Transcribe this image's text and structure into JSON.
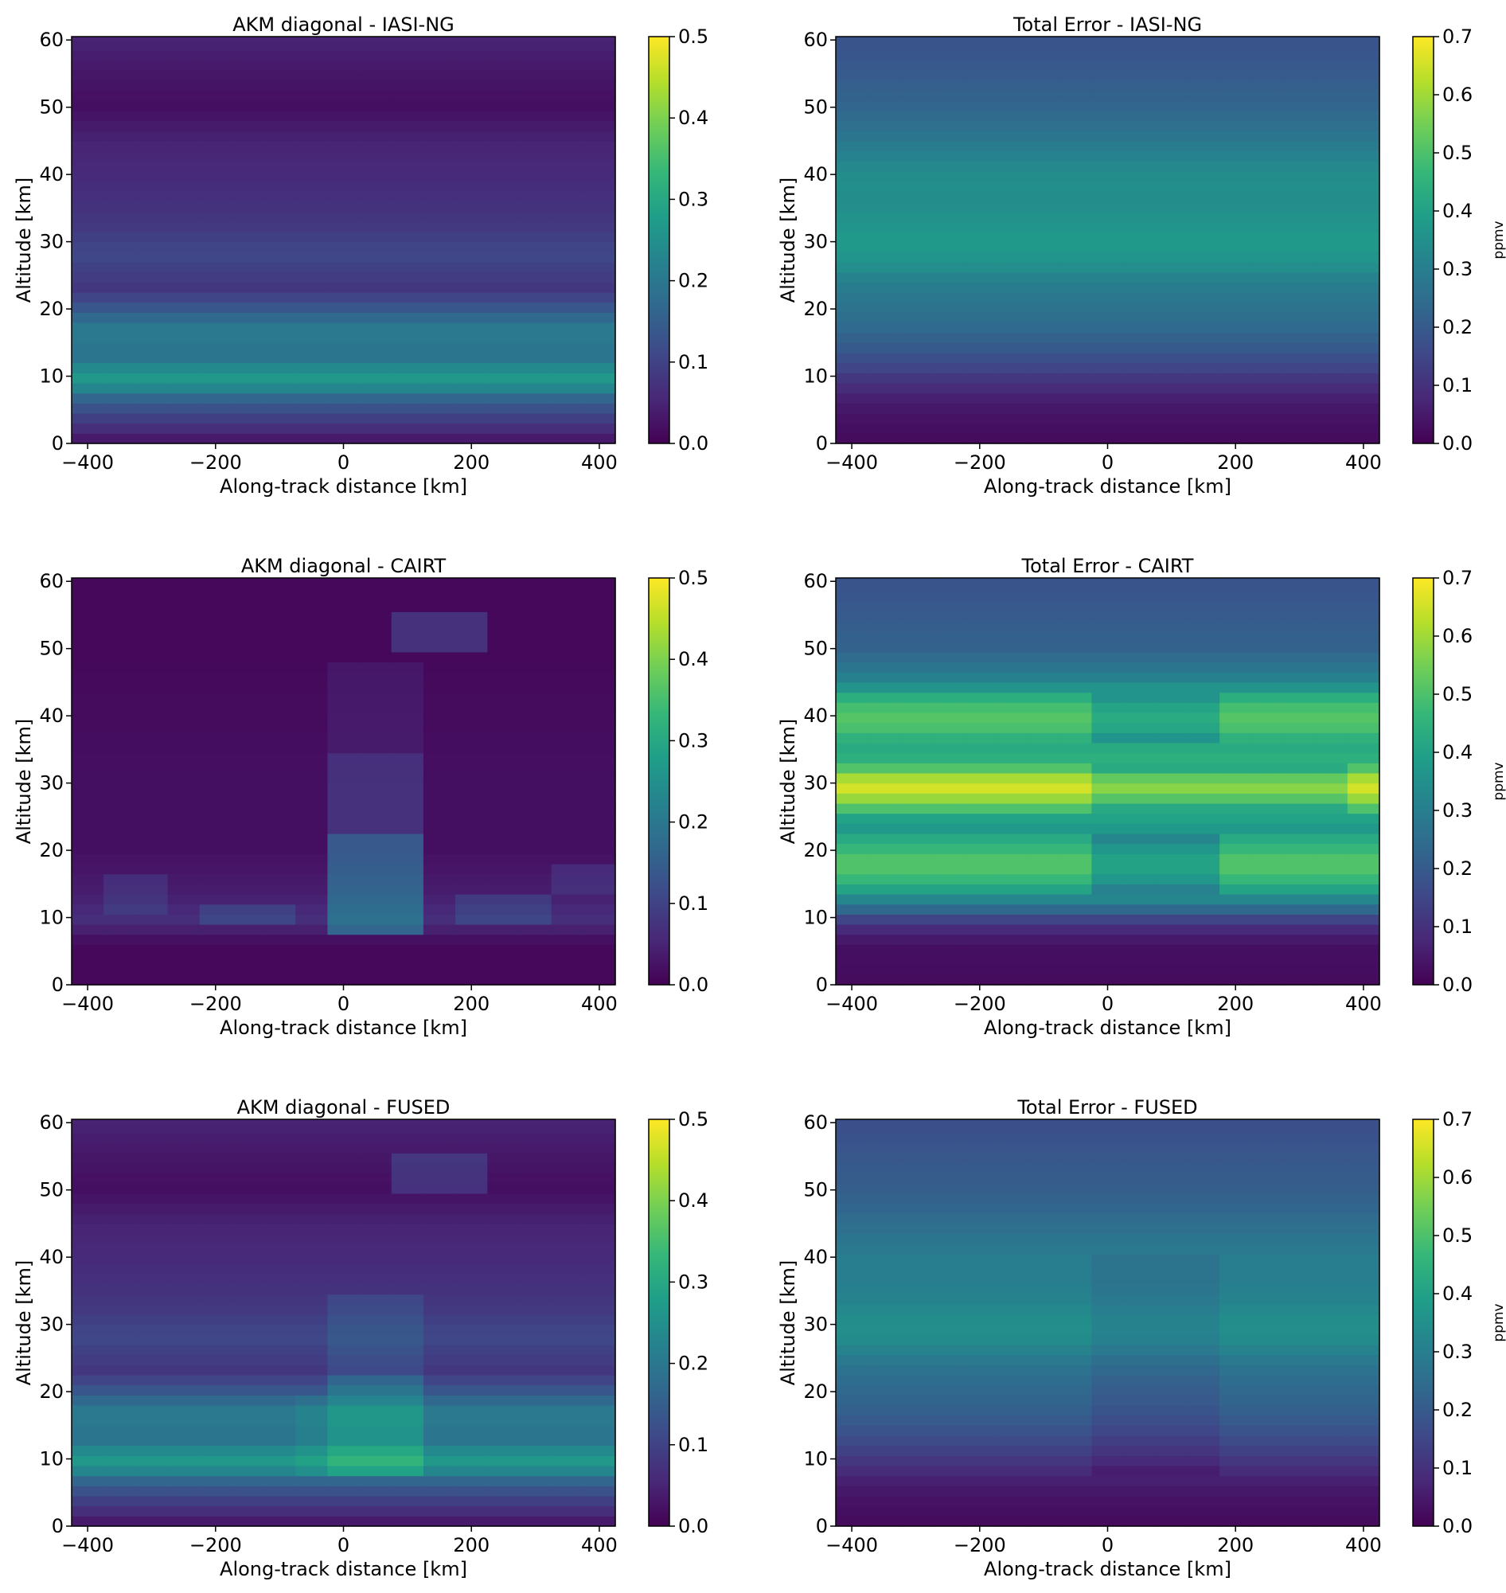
{
  "figure": {
    "colormap": "viridis",
    "colormap_stops": [
      "#440154",
      "#482878",
      "#3e4989",
      "#31688e",
      "#26828e",
      "#1f9e89",
      "#35b779",
      "#6ece58",
      "#b5de2b",
      "#fde725"
    ],
    "frame_color": "#000000"
  },
  "chart_data": [
    {
      "type": "heatmap",
      "title": "AKM diagonal - IASI-NG",
      "xlabel": "Along-track distance [km]",
      "ylabel": "Altitude [km]",
      "colorbar_label": "",
      "x_ticks": [
        "−400",
        "−200",
        "0",
        "200",
        "400"
      ],
      "y_ticks": [
        "0",
        "10",
        "20",
        "30",
        "40",
        "50",
        "60"
      ],
      "colorbar_ticks": [
        "0.0",
        "0.1",
        "0.2",
        "0.3",
        "0.4",
        "0.5"
      ],
      "xlim": [
        -425,
        425
      ],
      "ylim": [
        0,
        60.5
      ],
      "clim": [
        0,
        0.5
      ],
      "x": [
        -400,
        -350,
        -300,
        -250,
        -200,
        -150,
        -100,
        -50,
        0,
        50,
        100,
        150,
        200,
        250,
        300,
        350,
        400
      ],
      "altitude_profile": [
        [
          0,
          0.02
        ],
        [
          1.5,
          0.05
        ],
        [
          3,
          0.08
        ],
        [
          5,
          0.12
        ],
        [
          7,
          0.17
        ],
        [
          8.5,
          0.24
        ],
        [
          10,
          0.27
        ],
        [
          11.5,
          0.23
        ],
        [
          13,
          0.19
        ],
        [
          15,
          0.2
        ],
        [
          17,
          0.21
        ],
        [
          19,
          0.16
        ],
        [
          21,
          0.12
        ],
        [
          23,
          0.08
        ],
        [
          25,
          0.09
        ],
        [
          28,
          0.11
        ],
        [
          30,
          0.1
        ],
        [
          33,
          0.08
        ],
        [
          36,
          0.07
        ],
        [
          40,
          0.06
        ],
        [
          45,
          0.05
        ],
        [
          50,
          0.02
        ],
        [
          55,
          0.03
        ],
        [
          60,
          0.05
        ]
      ],
      "modifiers": []
    },
    {
      "type": "heatmap",
      "title": "Total Error - IASI-NG",
      "xlabel": "Along-track distance [km]",
      "ylabel": "Altitude [km]",
      "colorbar_label": "ppmv",
      "x_ticks": [
        "−400",
        "−200",
        "0",
        "200",
        "400"
      ],
      "y_ticks": [
        "0",
        "10",
        "20",
        "30",
        "40",
        "50",
        "60"
      ],
      "colorbar_ticks": [
        "0.0",
        "0.1",
        "0.2",
        "0.3",
        "0.4",
        "0.5",
        "0.6",
        "0.7"
      ],
      "xlim": [
        -425,
        425
      ],
      "ylim": [
        0,
        60.5
      ],
      "clim": [
        0,
        0.7
      ],
      "x": [
        -400,
        -350,
        -300,
        -250,
        -200,
        -150,
        -100,
        -50,
        0,
        50,
        100,
        150,
        200,
        250,
        300,
        350,
        400
      ],
      "altitude_profile": [
        [
          0,
          0.02
        ],
        [
          3,
          0.03
        ],
        [
          6,
          0.05
        ],
        [
          9,
          0.1
        ],
        [
          12,
          0.16
        ],
        [
          15,
          0.21
        ],
        [
          18,
          0.25
        ],
        [
          21,
          0.27
        ],
        [
          24,
          0.3
        ],
        [
          27,
          0.36
        ],
        [
          30,
          0.38
        ],
        [
          33,
          0.36
        ],
        [
          36,
          0.34
        ],
        [
          39,
          0.35
        ],
        [
          42,
          0.32
        ],
        [
          45,
          0.28
        ],
        [
          50,
          0.23
        ],
        [
          55,
          0.2
        ],
        [
          60,
          0.18
        ]
      ],
      "modifiers": []
    },
    {
      "type": "heatmap",
      "title": "AKM diagonal - CAIRT",
      "xlabel": "Along-track distance [km]",
      "ylabel": "Altitude [km]",
      "colorbar_label": "",
      "x_ticks": [
        "−400",
        "−200",
        "0",
        "200",
        "400"
      ],
      "y_ticks": [
        "0",
        "10",
        "20",
        "30",
        "40",
        "50",
        "60"
      ],
      "colorbar_ticks": [
        "0.0",
        "0.1",
        "0.2",
        "0.3",
        "0.4",
        "0.5"
      ],
      "xlim": [
        -425,
        425
      ],
      "ylim": [
        0,
        60.5
      ],
      "clim": [
        0,
        0.5
      ],
      "x": [
        -400,
        -350,
        -300,
        -250,
        -200,
        -150,
        -100,
        -50,
        0,
        50,
        100,
        150,
        200,
        250,
        300,
        350,
        400
      ],
      "altitude_profile": [
        [
          0,
          0.01
        ],
        [
          6,
          0.01
        ],
        [
          8,
          0.04
        ],
        [
          10,
          0.07
        ],
        [
          12,
          0.05
        ],
        [
          14,
          0.04
        ],
        [
          17,
          0.03
        ],
        [
          20,
          0.02
        ],
        [
          30,
          0.02
        ],
        [
          40,
          0.015
        ],
        [
          50,
          0.01
        ],
        [
          60,
          0.01
        ]
      ],
      "modifiers": [
        {
          "x_range": [
            -25,
            125
          ],
          "alt_range": [
            8,
            22
          ],
          "add": 0.12
        },
        {
          "x_range": [
            -25,
            125
          ],
          "alt_range": [
            22,
            35
          ],
          "add": 0.05
        },
        {
          "x_range": [
            -25,
            125
          ],
          "alt_range": [
            35,
            48
          ],
          "add": 0.02
        },
        {
          "x_range": [
            75,
            225
          ],
          "alt_range": [
            49,
            56
          ],
          "add": 0.06
        },
        {
          "x_range": [
            -225,
            -75
          ],
          "alt_range": [
            9,
            12
          ],
          "add": 0.04
        },
        {
          "x_range": [
            175,
            325
          ],
          "alt_range": [
            9,
            14
          ],
          "add": 0.04
        },
        {
          "x_range": [
            -375,
            -275
          ],
          "alt_range": [
            11,
            17
          ],
          "add": 0.03
        },
        {
          "x_range": [
            325,
            425
          ],
          "alt_range": [
            14,
            18
          ],
          "add": 0.03
        }
      ]
    },
    {
      "type": "heatmap",
      "title": "Total Error - CAIRT",
      "xlabel": "Along-track distance [km]",
      "ylabel": "Altitude [km]",
      "colorbar_label": "ppmv",
      "x_ticks": [
        "−400",
        "−200",
        "0",
        "200",
        "400"
      ],
      "y_ticks": [
        "0",
        "10",
        "20",
        "30",
        "40",
        "50",
        "60"
      ],
      "colorbar_ticks": [
        "0.0",
        "0.1",
        "0.2",
        "0.3",
        "0.4",
        "0.5",
        "0.6",
        "0.7"
      ],
      "xlim": [
        -425,
        425
      ],
      "ylim": [
        0,
        60.5
      ],
      "clim": [
        0,
        0.7
      ],
      "x": [
        -400,
        -350,
        -300,
        -250,
        -200,
        -150,
        -100,
        -50,
        0,
        50,
        100,
        150,
        200,
        250,
        300,
        350,
        400
      ],
      "altitude_profile": [
        [
          0,
          0.02
        ],
        [
          6,
          0.03
        ],
        [
          9,
          0.1
        ],
        [
          12,
          0.28
        ],
        [
          15,
          0.45
        ],
        [
          18,
          0.52
        ],
        [
          21,
          0.45
        ],
        [
          24,
          0.35
        ],
        [
          27,
          0.55
        ],
        [
          29,
          0.66
        ],
        [
          31,
          0.6
        ],
        [
          33,
          0.45
        ],
        [
          36,
          0.42
        ],
        [
          39,
          0.52
        ],
        [
          42,
          0.48
        ],
        [
          45,
          0.32
        ],
        [
          50,
          0.22
        ],
        [
          55,
          0.2
        ],
        [
          60,
          0.18
        ]
      ],
      "modifiers": [
        {
          "x_range": [
            -25,
            375
          ],
          "alt_range": [
            25,
            33
          ],
          "add": -0.08
        },
        {
          "x_range": [
            -25,
            175
          ],
          "alt_range": [
            14,
            23
          ],
          "add": -0.1
        },
        {
          "x_range": [
            -25,
            175
          ],
          "alt_range": [
            36,
            43
          ],
          "add": -0.08
        }
      ]
    },
    {
      "type": "heatmap",
      "title": "AKM diagonal - FUSED",
      "xlabel": "Along-track distance [km]",
      "ylabel": "Altitude [km]",
      "colorbar_label": "",
      "x_ticks": [
        "−400",
        "−200",
        "0",
        "200",
        "400"
      ],
      "y_ticks": [
        "0",
        "10",
        "20",
        "30",
        "40",
        "50",
        "60"
      ],
      "colorbar_ticks": [
        "0.0",
        "0.1",
        "0.2",
        "0.3",
        "0.4",
        "0.5"
      ],
      "xlim": [
        -425,
        425
      ],
      "ylim": [
        0,
        60.5
      ],
      "clim": [
        0,
        0.5
      ],
      "x": [
        -400,
        -350,
        -300,
        -250,
        -200,
        -150,
        -100,
        -50,
        0,
        50,
        100,
        150,
        200,
        250,
        300,
        350,
        400
      ],
      "altitude_profile": [
        [
          0,
          0.02
        ],
        [
          1.5,
          0.05
        ],
        [
          3,
          0.08
        ],
        [
          5,
          0.12
        ],
        [
          7,
          0.17
        ],
        [
          8.5,
          0.24
        ],
        [
          10,
          0.27
        ],
        [
          11.5,
          0.23
        ],
        [
          13,
          0.19
        ],
        [
          15,
          0.2
        ],
        [
          17,
          0.21
        ],
        [
          19,
          0.16
        ],
        [
          21,
          0.12
        ],
        [
          23,
          0.08
        ],
        [
          25,
          0.09
        ],
        [
          28,
          0.11
        ],
        [
          30,
          0.1
        ],
        [
          33,
          0.08
        ],
        [
          36,
          0.07
        ],
        [
          40,
          0.06
        ],
        [
          45,
          0.05
        ],
        [
          50,
          0.02
        ],
        [
          55,
          0.03
        ],
        [
          60,
          0.05
        ]
      ],
      "modifiers": [
        {
          "x_range": [
            -25,
            125
          ],
          "alt_range": [
            8,
            22
          ],
          "add": 0.06
        },
        {
          "x_range": [
            -25,
            125
          ],
          "alt_range": [
            22,
            35
          ],
          "add": 0.03
        },
        {
          "x_range": [
            75,
            225
          ],
          "alt_range": [
            49,
            56
          ],
          "add": 0.05
        },
        {
          "x_range": [
            -75,
            -25
          ],
          "alt_range": [
            8,
            20
          ],
          "add": 0.02
        }
      ]
    },
    {
      "type": "heatmap",
      "title": "Total Error - FUSED",
      "xlabel": "Along-track distance [km]",
      "ylabel": "Altitude [km]",
      "colorbar_label": "ppmv",
      "x_ticks": [
        "−400",
        "−200",
        "0",
        "200",
        "400"
      ],
      "y_ticks": [
        "0",
        "10",
        "20",
        "30",
        "40",
        "50",
        "60"
      ],
      "colorbar_ticks": [
        "0.0",
        "0.1",
        "0.2",
        "0.3",
        "0.4",
        "0.5",
        "0.6",
        "0.7"
      ],
      "xlim": [
        -425,
        425
      ],
      "ylim": [
        0,
        60.5
      ],
      "clim": [
        0,
        0.7
      ],
      "x": [
        -400,
        -350,
        -300,
        -250,
        -200,
        -150,
        -100,
        -50,
        0,
        50,
        100,
        150,
        200,
        250,
        300,
        350,
        400
      ],
      "altitude_profile": [
        [
          0,
          0.02
        ],
        [
          3,
          0.03
        ],
        [
          6,
          0.05
        ],
        [
          9,
          0.1
        ],
        [
          12,
          0.15
        ],
        [
          15,
          0.19
        ],
        [
          18,
          0.22
        ],
        [
          21,
          0.24
        ],
        [
          24,
          0.27
        ],
        [
          27,
          0.33
        ],
        [
          30,
          0.35
        ],
        [
          33,
          0.32
        ],
        [
          36,
          0.3
        ],
        [
          39,
          0.3
        ],
        [
          42,
          0.28
        ],
        [
          45,
          0.25
        ],
        [
          50,
          0.21
        ],
        [
          55,
          0.19
        ],
        [
          60,
          0.17
        ]
      ],
      "modifiers": [
        {
          "x_range": [
            -25,
            175
          ],
          "alt_range": [
            8,
            40
          ],
          "add": -0.03
        }
      ]
    }
  ]
}
